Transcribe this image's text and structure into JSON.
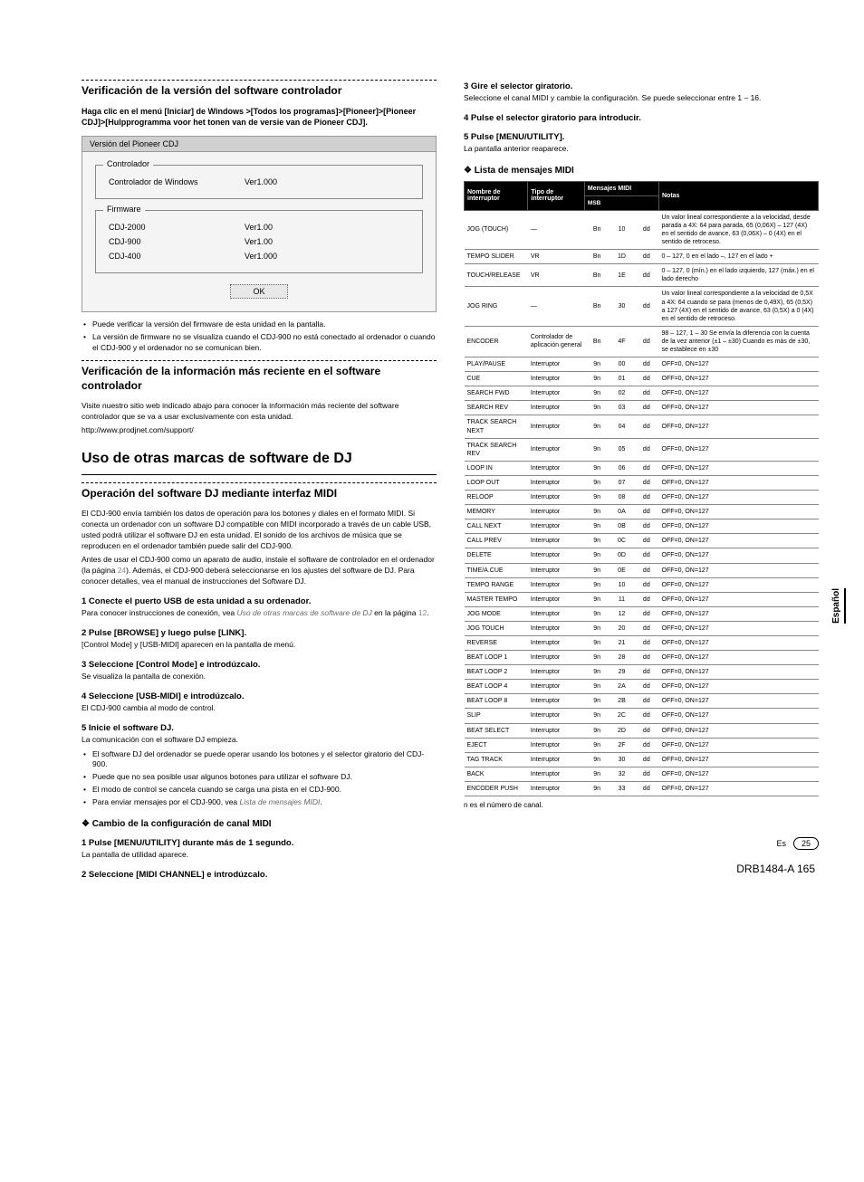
{
  "left": {
    "s1": {
      "title": "Verificación de la versión del software controlador",
      "intro": "Haga clic en el menú [Iniciar] de Windows >[Todos los programas]>[Pioneer]>[Pioneer CDJ]>[Hulpprogramma voor het tonen van de versie van de Pioneer CDJ].",
      "dialog": {
        "title": "Versión del Pioneer CDJ",
        "group1": {
          "title": "Controlador",
          "row1_label": "Controlador de Windows",
          "row1_val": "Ver1.000"
        },
        "group2": {
          "title": "Firmware",
          "r1l": "CDJ-2000",
          "r1v": "Ver1.00",
          "r2l": "CDJ-900",
          "r2v": "Ver1.00",
          "r3l": "CDJ-400",
          "r3v": "Ver1.000"
        },
        "ok": "OK"
      },
      "bullets": [
        "Puede verificar la versión del firmware de esta unidad en la pantalla.",
        "La versión de firmware no se visualiza cuando el CDJ-900 no está conectado al ordenador o cuando el CDJ-900 y el ordenador no se comunican bien."
      ]
    },
    "s2": {
      "title": "Verificación de la información más reciente en el software controlador",
      "p1": "Visite nuestro sitio web indicado abajo para conocer la información más reciente del software controlador que se va a usar exclusivamente con esta unidad.",
      "link": "http://www.prodjnet.com/support/"
    },
    "major": "Uso de otras marcas de software de DJ",
    "s3": {
      "title": "Operación del software DJ mediante interfaz MIDI",
      "p1": "El CDJ-900 envía también los datos de operación para los botones y diales en el formato MIDI. Si conecta un ordenador con un software DJ compatible con MIDI incorporado a través de un cable USB, usted podrá utilizar el software DJ en esta unidad. El sonido de los archivos de música que se reproducen en el ordenador también puede salir del CDJ-900.",
      "p2a": "Antes de usar el CDJ-900 como un aparato de audio, instale el software de controlador en el ordenador (la página ",
      "p2ref": "24",
      "p2b": "). Además, el CDJ-900 deberá seleccionarse en los ajustes del software de DJ. Para conocer detalles, vea el manual de instrucciones del Software DJ.",
      "steps": [
        {
          "n": "1",
          "t": "Conecte el puerto USB de esta unidad a su ordenador.",
          "b": "Para conocer instrucciones de conexión, vea ",
          "i": "Uso de otras marcas de software de DJ",
          "b2": " en la página ",
          "ref": "12",
          "b3": "."
        },
        {
          "n": "2",
          "t": "Pulse [BROWSE] y luego pulse [LINK].",
          "b": "[Control Mode] y [USB-MIDI] aparecen en la pantalla de menú."
        },
        {
          "n": "3",
          "t": "Seleccione [Control Mode] e introdúzcalo.",
          "b": "Se visualiza la pantalla de conexión."
        },
        {
          "n": "4",
          "t": "Seleccione [USB-MIDI] e introdúzcalo.",
          "b": "El CDJ-900 cambia al modo de control."
        },
        {
          "n": "5",
          "t": "Inicie el software DJ.",
          "b": "La comunicación con el software DJ empieza."
        }
      ],
      "sub_bullets": [
        "El software DJ del ordenador se puede operar usando los botones y el selector giratorio del CDJ-900.",
        "Puede que no sea posible usar algunos botones para utilizar el software DJ.",
        "El modo de control se cancela cuando se carga una pista en el CDJ-900.",
        "Para enviar mensajes por el CDJ-900, vea "
      ],
      "sub_bullet_ref": "Lista de mensajes MIDI",
      "sub_bullet_ref_end": "."
    },
    "s4": {
      "title": "Cambio de la configuración de canal MIDI",
      "steps": [
        {
          "n": "1",
          "t": "Pulse [MENU/UTILITY] durante más de 1 segundo.",
          "b": "La pantalla de utilidad aparece."
        },
        {
          "n": "2",
          "t": "Seleccione [MIDI CHANNEL] e introdúzcalo.",
          "b": ""
        }
      ]
    }
  },
  "right": {
    "steps": [
      {
        "n": "3",
        "t": "Gire el selector giratorio.",
        "b": "Seleccione el canal MIDI y cambie la configuración. Se puede seleccionar entre 1 – 16."
      },
      {
        "n": "4",
        "t": "Pulse el selector giratorio para introducir.",
        "b": ""
      },
      {
        "n": "5",
        "t": "Pulse [MENU/UTILITY].",
        "b": "La pantalla anterior reaparece."
      }
    ],
    "table_title": "Lista de mensajes MIDI",
    "th": {
      "c1": "Nombre de interruptor",
      "c2": "Tipo de interruptor",
      "c3": "Mensajes MIDI",
      "c4": "MSB",
      "c5": "Notas"
    },
    "rows": [
      {
        "a": "JOG (TOUCH)",
        "b": "—",
        "c": "Bn",
        "d": "10",
        "e": "dd",
        "f": "Un valor lineal correspondiente a la velocidad, desde parada a 4X: 64 para parada, 65 (0,06X) – 127 (4X) en el sentido de avance, 63 (0,06X) – 0 (4X) en el sentido de retroceso."
      },
      {
        "a": "TEMPO SLIDER",
        "b": "VR",
        "c": "Bn",
        "d": "1D",
        "e": "dd",
        "f": "0 – 127, 0 en el lado –, 127 en el lado +"
      },
      {
        "a": "TOUCH/RELEASE",
        "b": "VR",
        "c": "Bn",
        "d": "1E",
        "e": "dd",
        "f": "0 – 127, 0 (mín.) en el lado izquierdo, 127 (máx.) en el lado derecho"
      },
      {
        "a": "JOG RING",
        "b": "—",
        "c": "Bn",
        "d": "30",
        "e": "dd",
        "f": "Un valor lineal correspondiente a la velocidad de 0,5X a 4X: 64 cuando se para (menos de 0,49X), 65 (0,5X) a 127 (4X) en el sentido de avance, 63 (0,5X) a 0 (4X) en el sentido de retroceso."
      },
      {
        "a": "ENCODER",
        "b": "Controlador de aplicación general",
        "c": "Bn",
        "d": "4F",
        "e": "dd",
        "f": "98 – 127, 1 – 30 Se envía la diferencia con la cuenta de la vez anterior (±1 – ±30) Cuando es más de ±30, se establece en ±30"
      },
      {
        "a": "PLAY/PAUSE",
        "b": "Interruptor",
        "c": "9n",
        "d": "00",
        "e": "dd",
        "f": "OFF=0, ON=127"
      },
      {
        "a": "CUE",
        "b": "Interruptor",
        "c": "9n",
        "d": "01",
        "e": "dd",
        "f": "OFF=0, ON=127"
      },
      {
        "a": "SEARCH FWD",
        "b": "Interruptor",
        "c": "9n",
        "d": "02",
        "e": "dd",
        "f": "OFF=0, ON=127"
      },
      {
        "a": "SEARCH REV",
        "b": "Interruptor",
        "c": "9n",
        "d": "03",
        "e": "dd",
        "f": "OFF=0, ON=127"
      },
      {
        "a": "TRACK SEARCH NEXT",
        "b": "Interruptor",
        "c": "9n",
        "d": "04",
        "e": "dd",
        "f": "OFF=0, ON=127"
      },
      {
        "a": "TRACK SEARCH REV",
        "b": "Interruptor",
        "c": "9n",
        "d": "05",
        "e": "dd",
        "f": "OFF=0, ON=127"
      },
      {
        "a": "LOOP IN",
        "b": "Interruptor",
        "c": "9n",
        "d": "06",
        "e": "dd",
        "f": "OFF=0, ON=127"
      },
      {
        "a": "LOOP OUT",
        "b": "Interruptor",
        "c": "9n",
        "d": "07",
        "e": "dd",
        "f": "OFF=0, ON=127"
      },
      {
        "a": "RELOOP",
        "b": "Interruptor",
        "c": "9n",
        "d": "08",
        "e": "dd",
        "f": "OFF=0, ON=127"
      },
      {
        "a": "MEMORY",
        "b": "Interruptor",
        "c": "9n",
        "d": "0A",
        "e": "dd",
        "f": "OFF=0, ON=127"
      },
      {
        "a": "CALL NEXT",
        "b": "Interruptor",
        "c": "9n",
        "d": "0B",
        "e": "dd",
        "f": "OFF=0, ON=127"
      },
      {
        "a": "CALL PREV",
        "b": "Interruptor",
        "c": "9n",
        "d": "0C",
        "e": "dd",
        "f": "OFF=0, ON=127"
      },
      {
        "a": "DELETE",
        "b": "Interruptor",
        "c": "9n",
        "d": "0D",
        "e": "dd",
        "f": "OFF=0, ON=127"
      },
      {
        "a": "TIME/A.CUE",
        "b": "Interruptor",
        "c": "9n",
        "d": "0E",
        "e": "dd",
        "f": "OFF=0, ON=127"
      },
      {
        "a": "TEMPO RANGE",
        "b": "Interruptor",
        "c": "9n",
        "d": "10",
        "e": "dd",
        "f": "OFF=0, ON=127"
      },
      {
        "a": "MASTER TEMPO",
        "b": "Interruptor",
        "c": "9n",
        "d": "11",
        "e": "dd",
        "f": "OFF=0, ON=127"
      },
      {
        "a": "JOG MODE",
        "b": "Interruptor",
        "c": "9n",
        "d": "12",
        "e": "dd",
        "f": "OFF=0, ON=127"
      },
      {
        "a": "JOG TOUCH",
        "b": "Interruptor",
        "c": "9n",
        "d": "20",
        "e": "dd",
        "f": "OFF=0, ON=127"
      },
      {
        "a": "REVERSE",
        "b": "Interruptor",
        "c": "9n",
        "d": "21",
        "e": "dd",
        "f": "OFF=0, ON=127"
      },
      {
        "a": "BEAT LOOP 1",
        "b": "Interruptor",
        "c": "9n",
        "d": "28",
        "e": "dd",
        "f": "OFF=0, ON=127"
      },
      {
        "a": "BEAT LOOP 2",
        "b": "Interruptor",
        "c": "9n",
        "d": "29",
        "e": "dd",
        "f": "OFF=0, ON=127"
      },
      {
        "a": "BEAT LOOP 4",
        "b": "Interruptor",
        "c": "9n",
        "d": "2A",
        "e": "dd",
        "f": "OFF=0, ON=127"
      },
      {
        "a": "BEAT LOOP 8",
        "b": "Interruptor",
        "c": "9n",
        "d": "2B",
        "e": "dd",
        "f": "OFF=0, ON=127"
      },
      {
        "a": "SLIP",
        "b": "Interruptor",
        "c": "9n",
        "d": "2C",
        "e": "dd",
        "f": "OFF=0, ON=127"
      },
      {
        "a": "BEAT SELECT",
        "b": "Interruptor",
        "c": "9n",
        "d": "2D",
        "e": "dd",
        "f": "OFF=0, ON=127"
      },
      {
        "a": "EJECT",
        "b": "Interruptor",
        "c": "9n",
        "d": "2F",
        "e": "dd",
        "f": "OFF=0, ON=127"
      },
      {
        "a": "TAG TRACK",
        "b": "Interruptor",
        "c": "9n",
        "d": "30",
        "e": "dd",
        "f": "OFF=0, ON=127"
      },
      {
        "a": "BACK",
        "b": "Interruptor",
        "c": "9n",
        "d": "32",
        "e": "dd",
        "f": "OFF=0, ON=127"
      },
      {
        "a": "ENCODER PUSH",
        "b": "Interruptor",
        "c": "9n",
        "d": "33",
        "e": "dd",
        "f": "OFF=0, ON=127"
      }
    ],
    "table_note": "n es el número de canal."
  },
  "footer": {
    "lang": "Es",
    "page": "25",
    "sidetab": "Español",
    "bottom": "DRB1484-A   165"
  }
}
